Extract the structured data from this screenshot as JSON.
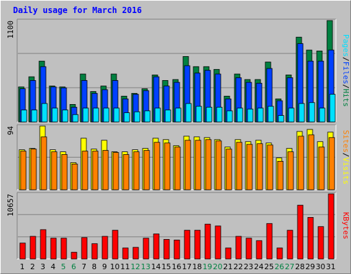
{
  "title": "Daily usage for March 2016",
  "colors": {
    "hits": "#008040",
    "files": "#0040ff",
    "pages": "#00e0ff",
    "visits": "#ffff00",
    "sites": "#ff8000",
    "kbytes": "#ff0000",
    "weekday_label": "#000000",
    "weekend_label": "#008040",
    "panel": "#c0c0c0",
    "grid": "#808080"
  },
  "chart_data": [
    {
      "type": "bar",
      "panel": "top",
      "ylabel_max": "1100",
      "legend": [
        {
          "name": "Pages",
          "color": "#00e0ff"
        },
        {
          "name": "/",
          "color": "#000000"
        },
        {
          "name": "Files",
          "color": "#0040ff"
        },
        {
          "name": "/",
          "color": "#000000"
        },
        {
          "name": "Hits",
          "color": "#008040"
        }
      ],
      "ylim": [
        0,
        1100
      ],
      "categories": [
        "1",
        "2",
        "3",
        "4",
        "5",
        "6",
        "7",
        "8",
        "9",
        "10",
        "11",
        "12",
        "13",
        "14",
        "15",
        "16",
        "17",
        "18",
        "19",
        "20",
        "21",
        "22",
        "23",
        "24",
        "25",
        "26",
        "27",
        "28",
        "29",
        "30",
        "31"
      ],
      "series": [
        {
          "name": "Hits",
          "color": "#008040",
          "values": [
            380,
            490,
            660,
            390,
            380,
            190,
            520,
            330,
            390,
            520,
            280,
            310,
            360,
            510,
            450,
            460,
            710,
            600,
            600,
            570,
            280,
            520,
            460,
            460,
            650,
            250,
            510,
            920,
            780,
            770,
            1100
          ]
        },
        {
          "name": "Files",
          "color": "#0040ff",
          "values": [
            360,
            450,
            600,
            380,
            370,
            160,
            450,
            310,
            350,
            450,
            250,
            300,
            340,
            490,
            390,
            430,
            610,
            530,
            560,
            520,
            250,
            480,
            430,
            420,
            580,
            230,
            480,
            850,
            660,
            660,
            780
          ]
        },
        {
          "name": "Pages",
          "color": "#00e0ff",
          "values": [
            130,
            130,
            200,
            150,
            130,
            80,
            150,
            150,
            150,
            150,
            100,
            110,
            120,
            150,
            130,
            150,
            200,
            170,
            160,
            160,
            120,
            150,
            140,
            150,
            170,
            70,
            150,
            200,
            210,
            150,
            300
          ]
        }
      ]
    },
    {
      "type": "bar",
      "panel": "middle",
      "ylabel_max": "94",
      "legend": [
        {
          "name": "Sites",
          "color": "#ff8000"
        },
        {
          "name": "/",
          "color": "#000000"
        },
        {
          "name": "Visits",
          "color": "#ffff00"
        }
      ],
      "ylim": [
        0,
        94
      ],
      "categories": [
        "1",
        "2",
        "3",
        "4",
        "5",
        "6",
        "7",
        "8",
        "9",
        "10",
        "11",
        "12",
        "13",
        "14",
        "15",
        "16",
        "17",
        "18",
        "19",
        "20",
        "21",
        "22",
        "23",
        "24",
        "25",
        "26",
        "27",
        "28",
        "29",
        "30",
        "31"
      ],
      "series": [
        {
          "name": "Visits",
          "color": "#ffff00",
          "values": [
            59,
            61,
            94,
            59,
            56,
            40,
            76,
            60,
            73,
            56,
            56,
            59,
            61,
            76,
            74,
            65,
            79,
            78,
            77,
            74,
            63,
            74,
            71,
            73,
            69,
            47,
            61,
            86,
            89,
            71,
            85
          ]
        },
        {
          "name": "Sites",
          "color": "#ff8000",
          "values": [
            57,
            60,
            78,
            56,
            52,
            38,
            57,
            57,
            58,
            55,
            52,
            56,
            58,
            70,
            69,
            63,
            73,
            73,
            74,
            72,
            60,
            70,
            67,
            68,
            66,
            42,
            56,
            79,
            81,
            63,
            77
          ]
        }
      ]
    },
    {
      "type": "bar",
      "panel": "bottom",
      "ylabel_max": "10657",
      "legend": [
        {
          "name": "KBytes",
          "color": "#ff0000"
        }
      ],
      "ylim": [
        0,
        10657
      ],
      "categories": [
        "1",
        "2",
        "3",
        "4",
        "5",
        "6",
        "7",
        "8",
        "9",
        "10",
        "11",
        "12",
        "13",
        "14",
        "15",
        "16",
        "17",
        "18",
        "19",
        "20",
        "21",
        "22",
        "23",
        "24",
        "25",
        "26",
        "27",
        "28",
        "29",
        "30",
        "31"
      ],
      "series": [
        {
          "name": "KBytes",
          "color": "#ff0000",
          "values": [
            2600,
            3700,
            4800,
            3400,
            3400,
            1100,
            3500,
            2500,
            3700,
            4700,
            1800,
            1900,
            3400,
            4100,
            3200,
            3100,
            4700,
            4700,
            5700,
            5400,
            1800,
            3700,
            3400,
            3000,
            5800,
            1800,
            4700,
            8800,
            6800,
            5300,
            10657
          ]
        }
      ]
    }
  ],
  "day_labels": [
    "1",
    "2",
    "3",
    "4",
    "5",
    "6",
    "7",
    "8",
    "9",
    "10",
    "11",
    "12",
    "13",
    "14",
    "15",
    "16",
    "17",
    "18",
    "19",
    "20",
    "21",
    "22",
    "23",
    "24",
    "25",
    "26",
    "27",
    "28",
    "29",
    "30",
    "31"
  ],
  "weekend_days": [
    "5",
    "6",
    "12",
    "13",
    "19",
    "20",
    "26",
    "27"
  ]
}
